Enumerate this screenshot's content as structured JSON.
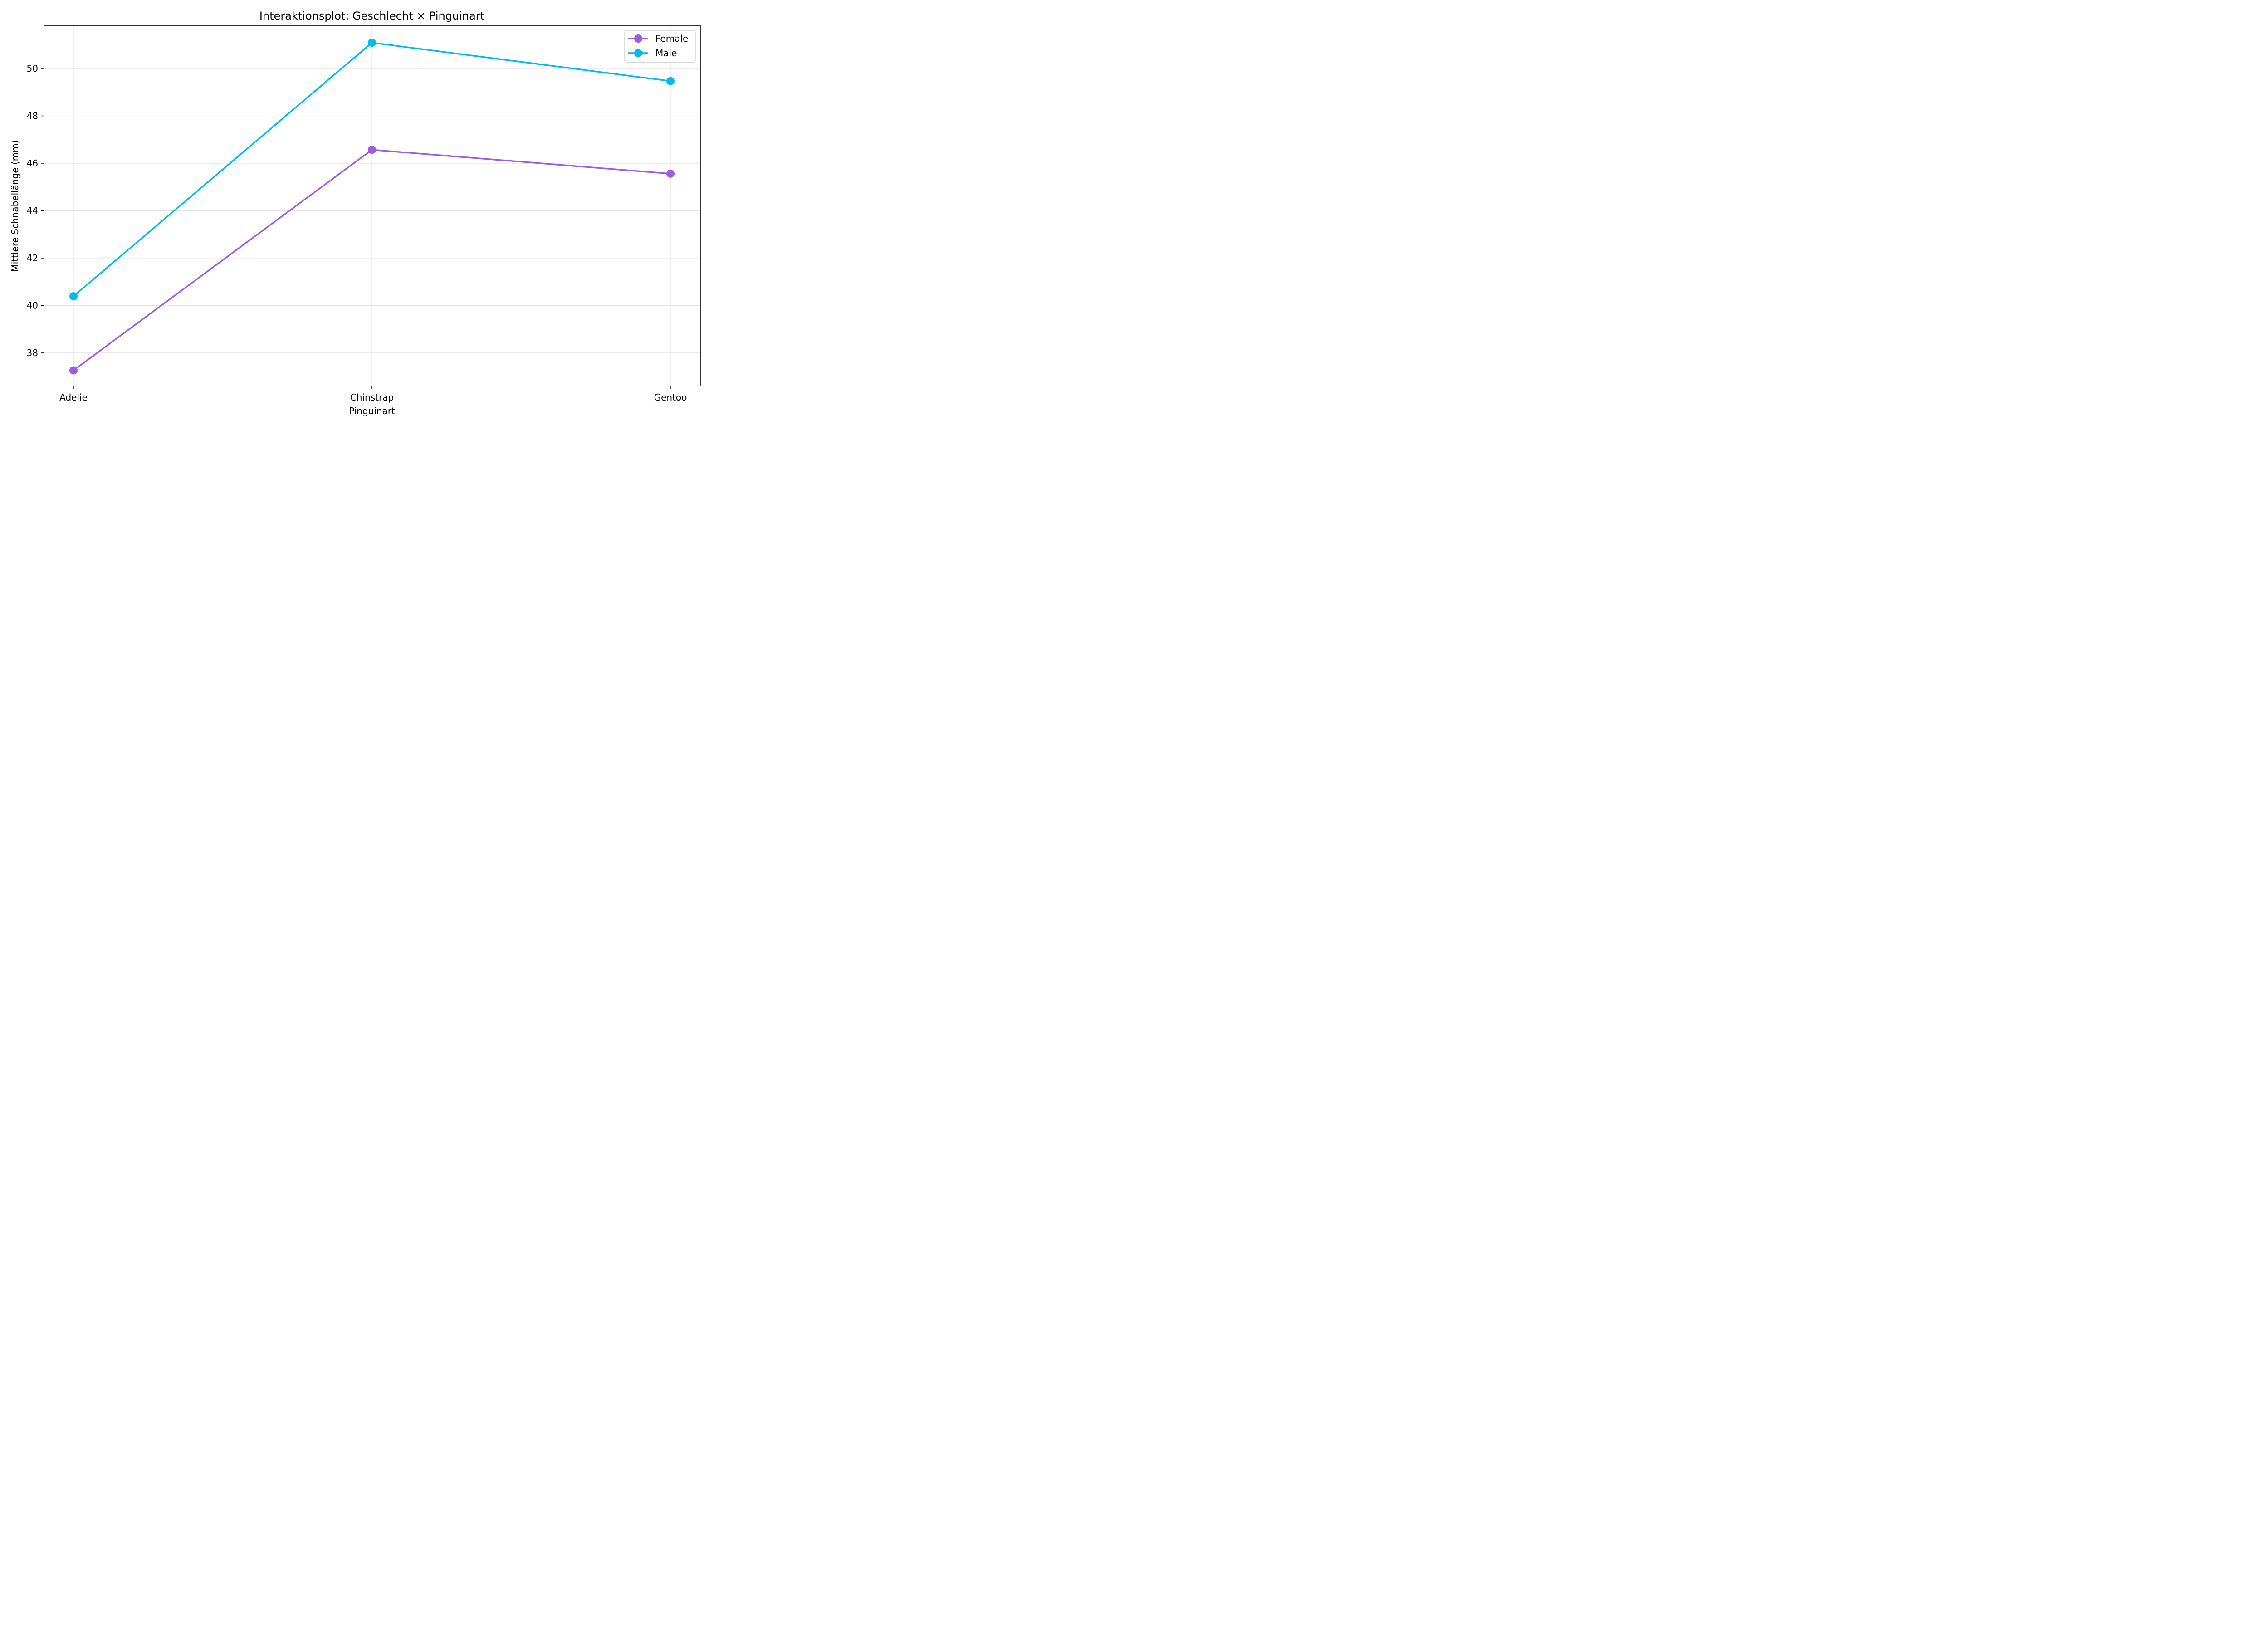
{
  "chart_data": {
    "type": "line",
    "title": "Interaktionsplot: Geschlecht × Pinguinart",
    "xlabel": "Pinguinart",
    "ylabel": "Mittlere Schnabellänge (mm)",
    "categories": [
      "Adelie",
      "Chinstrap",
      "Gentoo"
    ],
    "ylim": [
      36.6,
      51.8
    ],
    "yticks": [
      38,
      40,
      42,
      44,
      46,
      48,
      50
    ],
    "grid": true,
    "legend_position": "top-right",
    "series": [
      {
        "name": "Female",
        "color": "#9b5de5",
        "values": [
          37.26,
          46.57,
          45.56
        ]
      },
      {
        "name": "Male",
        "color": "#00bbf0",
        "values": [
          40.39,
          51.09,
          49.47
        ]
      }
    ]
  }
}
